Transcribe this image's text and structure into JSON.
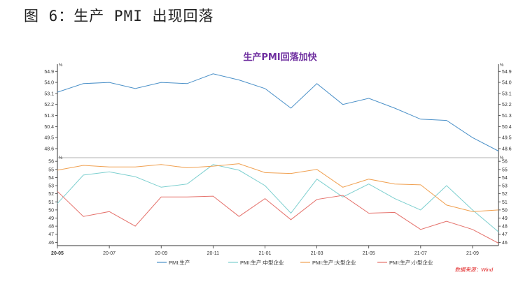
{
  "figure_title": "图 6：生产 PMI 出现回落",
  "source_note": "数据来源：Wind",
  "colors": {
    "title": "#7030A0",
    "pmi": "#4A90C8",
    "medium": "#7CCFCF",
    "large": "#F0A050",
    "small": "#E5726C",
    "source": "#E02020"
  },
  "chart_data": [
    {
      "type": "line",
      "title": "生产PMI回落加快",
      "ylabel": "%",
      "x": [
        "20-05",
        "20-06",
        "20-07",
        "20-08",
        "20-09",
        "20-10",
        "20-11",
        "20-12",
        "21-01",
        "21-02",
        "21-03",
        "21-04",
        "21-05",
        "21-06",
        "21-07",
        "21-08",
        "21-09",
        "21-10"
      ],
      "xtick_labels": [
        "20-05",
        "20-07",
        "20-09",
        "20-11",
        "21-01",
        "21-03",
        "21-05",
        "21-07",
        "21-09"
      ],
      "ylim": [
        48.2,
        55.2
      ],
      "yticks": [
        "48.6",
        "49.5",
        "50.4",
        "51.3",
        "52.2",
        "53.1",
        "54.0",
        "54.9"
      ],
      "series": [
        {
          "name": "PMI:生产",
          "values": [
            53.2,
            53.9,
            54.0,
            53.5,
            54.0,
            53.9,
            54.7,
            54.2,
            53.5,
            51.9,
            53.9,
            52.2,
            52.7,
            51.9,
            51.0,
            50.9,
            49.5,
            48.4
          ]
        }
      ]
    },
    {
      "type": "line",
      "ylabel": "%",
      "x": [
        "20-05",
        "20-06",
        "20-07",
        "20-08",
        "20-09",
        "20-10",
        "20-11",
        "20-12",
        "21-01",
        "21-02",
        "21-03",
        "21-04",
        "21-05",
        "21-06",
        "21-07",
        "21-08",
        "21-09",
        "21-10"
      ],
      "xtick_labels": [
        "20-05",
        "20-07",
        "20-09",
        "20-11",
        "21-01",
        "21-03",
        "21-05",
        "21-07",
        "21-09"
      ],
      "ylim": [
        45.6,
        56.1
      ],
      "yticks": [
        "46",
        "47",
        "48",
        "49",
        "50",
        "51",
        "52",
        "53",
        "54",
        "55",
        "56"
      ],
      "series": [
        {
          "name": "PMI:生产:中型企业",
          "values": [
            50.8,
            54.3,
            54.7,
            54.1,
            52.8,
            53.2,
            55.6,
            54.9,
            53.0,
            49.6,
            53.8,
            51.6,
            53.2,
            51.4,
            50.0,
            53.0,
            50.0,
            47.3
          ]
        },
        {
          "name": "PMI:生产:大型企业",
          "values": [
            54.9,
            55.5,
            55.3,
            55.3,
            55.6,
            55.2,
            55.4,
            55.7,
            54.6,
            54.5,
            55.0,
            52.8,
            53.8,
            53.2,
            53.1,
            50.6,
            49.8,
            50.0
          ]
        },
        {
          "name": "PMI:生产:小型企业",
          "values": [
            52.3,
            49.2,
            49.8,
            48.0,
            51.6,
            51.6,
            51.7,
            49.2,
            51.4,
            48.8,
            51.3,
            51.8,
            49.6,
            49.7,
            47.6,
            48.6,
            47.6,
            45.9
          ]
        }
      ]
    }
  ],
  "legend": [
    "PMI:生产",
    "PMI:生产:中型企业",
    "PMI:生产:大型企业",
    "PMI:生产:小型企业"
  ]
}
